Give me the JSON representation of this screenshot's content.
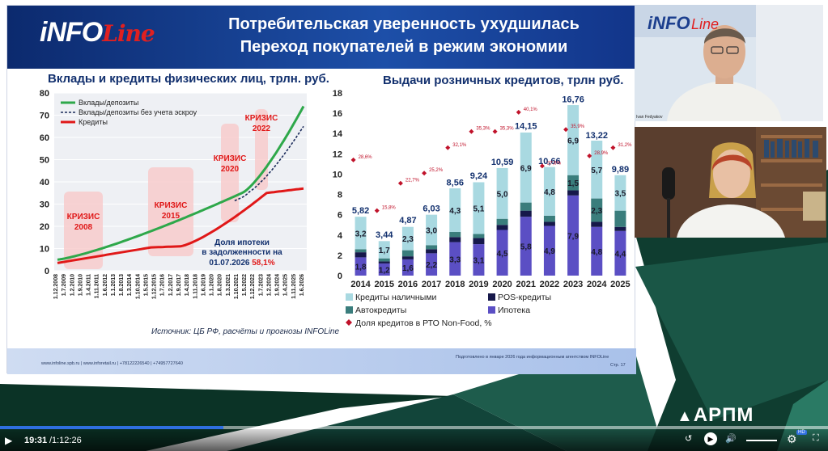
{
  "slide": {
    "logo_main": "iNFO",
    "logo_sub": "Line",
    "title_line1": "Потребительская уверенность ухудшилась",
    "title_line2": "Переход покупателей в режим экономии",
    "source": "Источник: ЦБ РФ, расчёты и прогнозы INFOLine",
    "footer_left": "www.infoline.spb.ru | www.inforetail.ru | +78122226540 | +74957727640",
    "footer_right": "Подготовлено в январе 2026 года информационным агентством INFOLine",
    "footer_page": "Стр. 17"
  },
  "line_chart": {
    "title": "Вклады и кредиты физических лиц, трлн. руб.",
    "legend": [
      "Вклады/депозиты",
      "Вклады/депозиты без учета эскроу",
      "Кредиты"
    ],
    "colors": {
      "deposits": "#2ea84a",
      "no_escrow": "#1a2a5a",
      "loans": "#e01818"
    },
    "y_ticks": [
      "80",
      "70",
      "60",
      "50",
      "40",
      "30",
      "20",
      "10",
      "0"
    ],
    "x_ticks": [
      "1.12.2008",
      "1.7.2009",
      "1.2.2010",
      "1.9.2010",
      "1.4.2011",
      "1.11.2011",
      "1.6.2012",
      "1.1.2013",
      "1.8.2013",
      "1.3.2014",
      "1.10.2014",
      "1.5.2015",
      "1.12.2015",
      "1.7.2016",
      "1.2.2017",
      "1.9.2017",
      "1.4.2018",
      "1.11.2018",
      "1.6.2019",
      "1.1.2020",
      "1.8.2020",
      "1.3.2021",
      "1.10.2021",
      "1.5.2022",
      "1.12.2022",
      "1.7.2023",
      "1.2.2024",
      "1.9.2024",
      "1.4.2025",
      "1.11.2025",
      "1.6.2026"
    ],
    "crises": [
      {
        "label1": "КРИЗИС",
        "label2": "2008"
      },
      {
        "label1": "КРИЗИС",
        "label2": "2015"
      },
      {
        "label1": "КРИЗИС",
        "label2": "2020"
      },
      {
        "label1": "КРИЗИС",
        "label2": "2022"
      }
    ],
    "mortgage_note_1": "Доля ипотеки",
    "mortgage_note_2": "в задолженности на",
    "mortgage_note_3": "01.07.2026",
    "mortgage_note_value": "58,1%"
  },
  "chart_data": {
    "type": "bar",
    "title": "Выдачи розничных кредитов, трлн руб.",
    "categories": [
      "2014",
      "2015",
      "2016",
      "2017",
      "2018",
      "2019",
      "2020",
      "2021",
      "2022",
      "2023",
      "2024",
      "2025"
    ],
    "ylim": [
      0,
      18
    ],
    "y_ticks": [
      "18",
      "16",
      "14",
      "12",
      "10",
      "8",
      "6",
      "4",
      "2",
      "0"
    ],
    "totals": [
      "5,82",
      "3,44",
      "4,87",
      "6,03",
      "8,56",
      "9,24",
      "10,59",
      "14,15",
      "10,66",
      "16,76",
      "13,22",
      "9,89"
    ],
    "total_values": [
      5.82,
      3.44,
      4.87,
      6.03,
      8.56,
      9.24,
      10.59,
      14.15,
      10.66,
      16.76,
      13.22,
      9.89
    ],
    "series": [
      {
        "name": "Ипотека",
        "color": "#5b4fc4",
        "values": [
          1.8,
          1.2,
          1.6,
          2.2,
          3.3,
          3.1,
          4.5,
          5.8,
          4.9,
          7.9,
          4.8,
          4.4
        ],
        "labels": [
          "1,8",
          "1,2",
          "1,6",
          "2,2",
          "3,3",
          "3,1",
          "4,5",
          "5,8",
          "4,9",
          "7,9",
          "4,8",
          "4,4"
        ]
      },
      {
        "name": "POS-кредиты",
        "color": "#16184a",
        "values": [
          0.5,
          0.2,
          0.3,
          0.4,
          0.5,
          0.6,
          0.5,
          0.6,
          0.4,
          0.5,
          0.5,
          0.4
        ],
        "labels": []
      },
      {
        "name": "Автокредиты",
        "color": "#3a7d7c",
        "values": [
          0.3,
          0.3,
          0.6,
          0.4,
          0.5,
          0.4,
          0.6,
          0.8,
          0.6,
          1.5,
          2.3,
          1.6
        ],
        "labels": [
          "",
          "",
          "",
          "",
          "",
          "",
          "",
          "",
          "",
          "1,5",
          "2,3",
          ""
        ]
      },
      {
        "name": "Кредиты наличными",
        "color": "#a9d9e1",
        "values": [
          3.2,
          1.7,
          2.3,
          3.0,
          4.3,
          5.1,
          5.0,
          6.9,
          4.8,
          6.9,
          5.7,
          3.5
        ],
        "labels": [
          "3,2",
          "1,7",
          "2,3",
          "3,0",
          "4,3",
          "5,1",
          "5,0",
          "6,9",
          "4,8",
          "6,9",
          "5,7",
          "3,5"
        ]
      }
    ],
    "share_series": {
      "name": "Доля кредитов в РТО Non-Food, %",
      "color": "#c0122a",
      "values": [
        11.4,
        6.4,
        9.1,
        10.1,
        12.6,
        14.2,
        14.2,
        16.1,
        10.8,
        14.4,
        11.8,
        12.6
      ],
      "labels": [
        "28,6%",
        "15,8%",
        "22,7%",
        "25,2%",
        "32,1%",
        "35,3%",
        "35,3%",
        "40,1%",
        "27,6%",
        "35,9%",
        "28,9%",
        "31,2%"
      ]
    },
    "legend_order": [
      "Кредиты наличными",
      "POS-кредиты",
      "Автокредиты",
      "Ипотека",
      "Доля кредитов в РТО Non-Food, %"
    ]
  },
  "cam1": {
    "name_tag": "Ivan Fedyakov",
    "logo_main": "iNFO",
    "logo_sub": "Line"
  },
  "brand_overlay": "АРПМ",
  "player": {
    "current_time": "19:31",
    "separator": " / ",
    "duration": "1:12:26",
    "progress_fraction": 0.27,
    "hd_badge": "HD"
  }
}
